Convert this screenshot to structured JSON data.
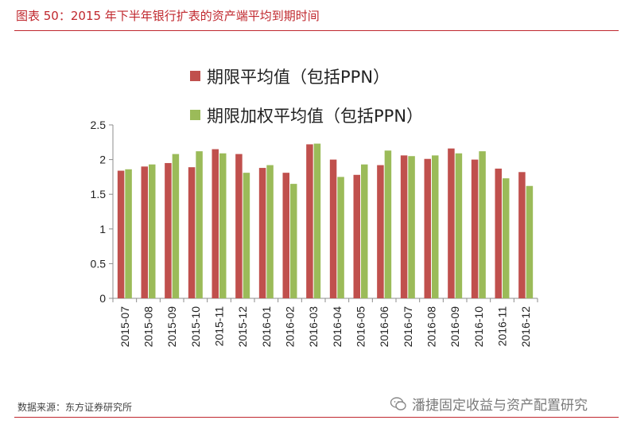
{
  "header": {
    "title": "图表 50：2015 年下半年银行扩表的资产端平均到期时间"
  },
  "footer": {
    "source": "数据来源：东方证券研究所",
    "watermark": "潘捷固定收益与资产配置研究"
  },
  "colors": {
    "accent": "#c0282e",
    "series1": "#c0504d",
    "series2": "#9bbb59"
  },
  "chart_data": {
    "type": "bar",
    "title": "",
    "xlabel": "",
    "ylabel": "",
    "ylim": [
      0,
      2.5
    ],
    "yticks": [
      "2.5",
      "2",
      "1.5",
      "1",
      "0.5",
      "0"
    ],
    "legend_position": "top-center",
    "categories": [
      "2015-07",
      "2015-08",
      "2015-09",
      "2015-10",
      "2015-11",
      "2015-12",
      "2016-01",
      "2016-02",
      "2016-03",
      "2016-04",
      "2016-05",
      "2016-06",
      "2016-07",
      "2016-08",
      "2016-09",
      "2016-10",
      "2016-11",
      "2016-12"
    ],
    "series": [
      {
        "name": "期限平均值（包括PPN）",
        "values": [
          1.84,
          1.9,
          1.95,
          1.89,
          2.15,
          2.08,
          1.88,
          1.81,
          2.22,
          2.0,
          1.78,
          1.92,
          2.06,
          2.01,
          2.16,
          2.0,
          1.87,
          1.82
        ]
      },
      {
        "name": "期限加权平均值（包括PPN）",
        "values": [
          1.86,
          1.93,
          2.08,
          2.12,
          2.09,
          1.81,
          1.92,
          1.65,
          2.23,
          1.75,
          1.93,
          2.13,
          2.05,
          2.06,
          2.09,
          2.12,
          1.73,
          1.62
        ]
      }
    ]
  }
}
